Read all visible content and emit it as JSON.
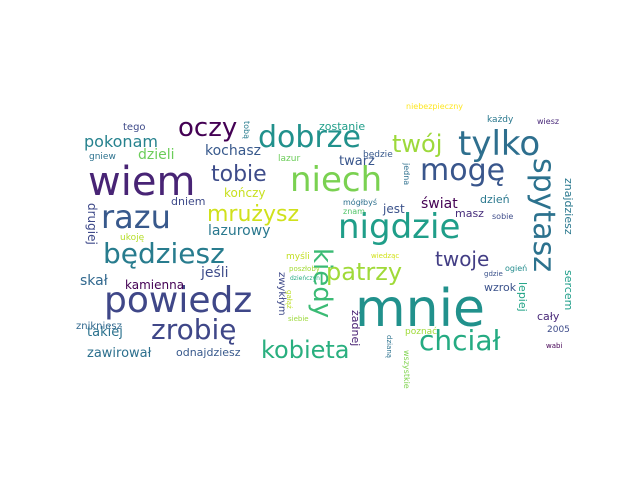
{
  "words": [
    {
      "text": "mnie",
      "color": "#21918c"
    },
    {
      "text": "wiem",
      "color": "#482475"
    },
    {
      "text": "powiedz",
      "color": "#3f4788"
    },
    {
      "text": "nigdzie",
      "color": "#1f9e89"
    },
    {
      "text": "tylko",
      "color": "#2e6f8e"
    },
    {
      "text": "dobrze",
      "color": "#21918c"
    },
    {
      "text": "razu",
      "color": "#38598c"
    },
    {
      "text": "niech",
      "color": "#7ad151"
    },
    {
      "text": "mogę",
      "color": "#39568c"
    },
    {
      "text": "będziesz",
      "color": "#287c8e"
    },
    {
      "text": "zrobię",
      "color": "#3f4788"
    },
    {
      "text": "spytasz",
      "color": "#2c728e"
    },
    {
      "text": "chciał",
      "color": "#25ab82"
    },
    {
      "text": "oczy",
      "color": "#440154"
    },
    {
      "text": "kiedy",
      "color": "#3bbb75"
    },
    {
      "text": "kobieta",
      "color": "#29af7f"
    },
    {
      "text": "patrzy",
      "color": "#a0da39"
    },
    {
      "text": "twój",
      "color": "#9dd93b"
    },
    {
      "text": "tobie",
      "color": "#3e4c8a"
    },
    {
      "text": "mrużysz",
      "color": "#d0e11c"
    },
    {
      "text": "twoje",
      "color": "#433e85"
    },
    {
      "text": "pokonam",
      "color": "#26828e"
    },
    {
      "text": "kochasz",
      "color": "#38598c"
    },
    {
      "text": "dzieli",
      "color": "#6ccd5a"
    },
    {
      "text": "kończy",
      "color": "#c8e020"
    },
    {
      "text": "dniem",
      "color": "#3e4a89"
    },
    {
      "text": "lazurowy",
      "color": "#2a788e"
    },
    {
      "text": "jeśli",
      "color": "#3e4c8a"
    },
    {
      "text": "kamienna",
      "color": "#440154"
    },
    {
      "text": "takiej",
      "color": "#2c728e"
    },
    {
      "text": "zawirował",
      "color": "#2d708e"
    },
    {
      "text": "odnajdziesz",
      "color": "#38598c"
    },
    {
      "text": "znikniesz",
      "color": "#30688e"
    },
    {
      "text": "świat",
      "color": "#440154"
    },
    {
      "text": "dzień",
      "color": "#2a788e"
    },
    {
      "text": "jest",
      "color": "#3b528b"
    },
    {
      "text": "masz",
      "color": "#472d7b"
    },
    {
      "text": "twarz",
      "color": "#39568c"
    },
    {
      "text": "zostanie",
      "color": "#1f9e89"
    },
    {
      "text": "tego",
      "color": "#3e4a89"
    },
    {
      "text": "gniew",
      "color": "#2c728e"
    },
    {
      "text": "tobą",
      "color": "#287c8e"
    },
    {
      "text": "lazur",
      "color": "#6ccd5a"
    },
    {
      "text": "będzie",
      "color": "#38598c"
    },
    {
      "text": "niebezpieczny",
      "color": "#fde725"
    },
    {
      "text": "każdy",
      "color": "#2a788e"
    },
    {
      "text": "wiesz",
      "color": "#482878"
    },
    {
      "text": "drugiej",
      "color": "#3e4989"
    },
    {
      "text": "skał",
      "color": "#31688e"
    },
    {
      "text": "ukoję",
      "color": "#b5de2b"
    },
    {
      "text": "zwykłym",
      "color": "#3e4989"
    },
    {
      "text": "myśli",
      "color": "#c2df23"
    },
    {
      "text": "poszłoby",
      "color": "#a2da37"
    },
    {
      "text": "mógłbyś",
      "color": "#2d708e"
    },
    {
      "text": "znam",
      "color": "#52c569"
    },
    {
      "text": "jedna",
      "color": "#2e6f8e"
    },
    {
      "text": "sobie",
      "color": "#3e4c8a"
    },
    {
      "text": "wiedząc",
      "color": "#d2e21b"
    },
    {
      "text": "sercem",
      "color": "#1f9e89"
    },
    {
      "text": "znajdziesz",
      "color": "#2a788e"
    },
    {
      "text": "lepiej",
      "color": "#20a386"
    },
    {
      "text": "wzrok",
      "color": "#3b528b"
    },
    {
      "text": "cały",
      "color": "#482878"
    },
    {
      "text": "ogień",
      "color": "#228c8d"
    },
    {
      "text": "gdzie",
      "color": "#3b528b"
    },
    {
      "text": "żadnej",
      "color": "#482173"
    },
    {
      "text": "poznać",
      "color": "#a0da39"
    },
    {
      "text": "wszystkie",
      "color": "#7fd34e"
    },
    {
      "text": "dzieńczyn",
      "color": "#25ab82"
    },
    {
      "text": "siebie",
      "color": "#9dd93b"
    },
    {
      "text": "gałąź",
      "color": "#bddf26"
    },
    {
      "text": "dzianą",
      "color": "#2c728e"
    },
    {
      "text": "2005",
      "color": "#3e4c8a"
    },
    {
      "text": "wabi",
      "color": "#440154"
    }
  ]
}
